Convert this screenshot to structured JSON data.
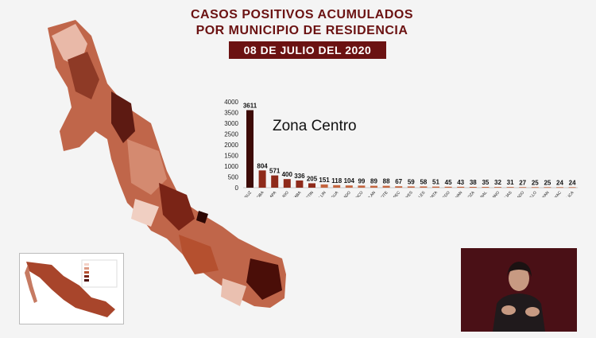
{
  "header": {
    "title_line1": "CASOS POSITIVOS ACUMULADOS",
    "title_line2": "POR MUNICIPIO DE RESIDENCIA",
    "date": "08 DE JULIO DEL 2020"
  },
  "zone_label": "Zona Centro",
  "colors": {
    "title": "#6b1212",
    "banner_bg": "#6b1212",
    "bar_dark": "#3d0b07",
    "bar_mid": "#8e2a1a",
    "bar_light": "#c4653f"
  },
  "chart_data": {
    "type": "bar",
    "categories": [
      "VERACRUZ",
      "CORDOBA",
      "XALAPA",
      "BOCA DEL RIO",
      "ORIZABA",
      "FORTIN",
      "MEDELLIN",
      "LA ANTIGUA",
      "ALVARADO",
      "RIO BLANCO",
      "IXTACZOQUITLAN",
      "PEROTE",
      "COATEPEC",
      "A. DE LOS REYES",
      "NOGALES",
      "EMILIANO ZAPATA",
      "MARIANO ESCOBEDO",
      "URSULO GALVAN",
      "C. Z. MENDOZA",
      "PUENTE NACIONAL",
      "MF. ALTAMIRANO",
      "PASO DE OVEJAS",
      "S. DE DOBLADO",
      "IXHUATLANCILLO",
      "TLALIXCOYAN",
      "ATOYAC",
      "ZONGOLICA"
    ],
    "values": [
      3611,
      804,
      571,
      400,
      336,
      205,
      151,
      118,
      104,
      99,
      89,
      88,
      67,
      59,
      58,
      51,
      45,
      43,
      38,
      35,
      32,
      31,
      27,
      25,
      25,
      24,
      24
    ],
    "value_labels": [
      "3611",
      "804",
      "571",
      "400",
      "336",
      "205",
      "151",
      "118",
      "104",
      "99",
      "89",
      "88",
      "67",
      "59",
      "58",
      "51",
      "45",
      "43",
      "38",
      "35",
      "32",
      "31",
      "27",
      "25",
      "25",
      "24",
      "24"
    ],
    "y_ticks": [
      0,
      500,
      1000,
      1500,
      2000,
      2500,
      3000,
      3500,
      4000
    ],
    "ylim": [
      0,
      4000
    ],
    "grid": false,
    "legend": "none",
    "title": "CASOS POSITIVOS ACUMULADOS POR MUNICIPIO DE RESIDENCIA"
  }
}
